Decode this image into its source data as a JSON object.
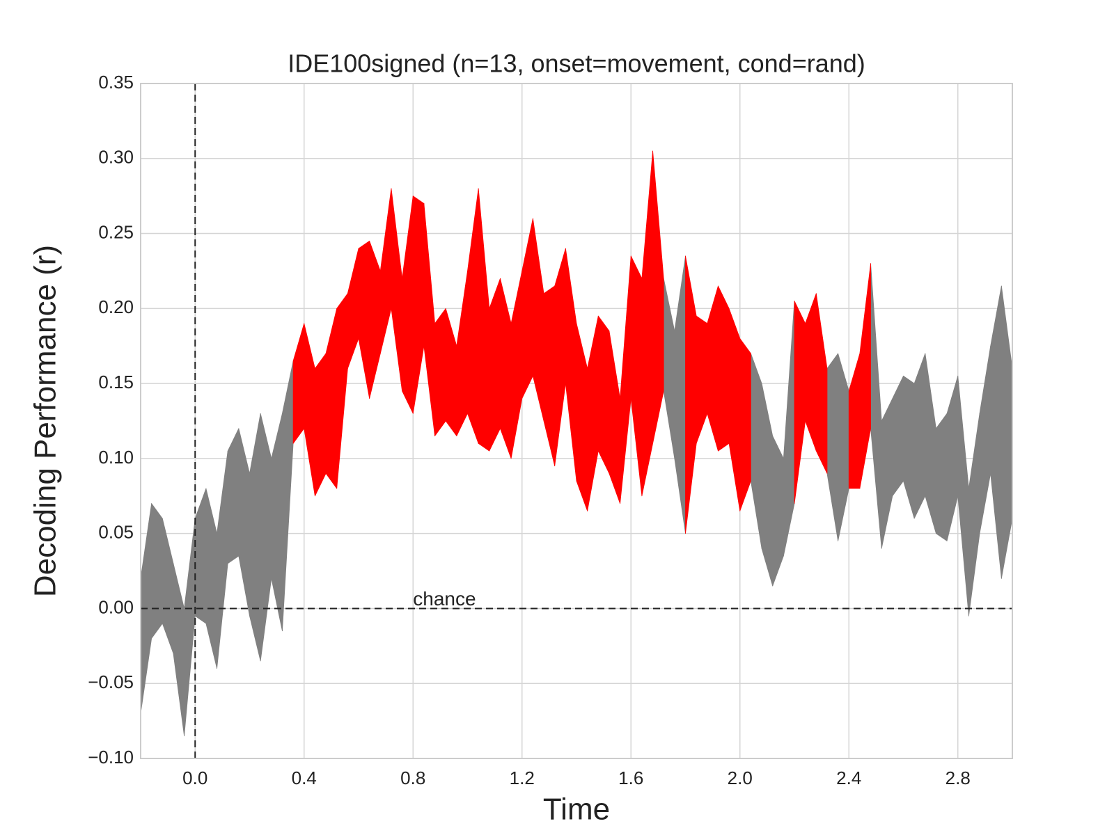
{
  "chart_data": {
    "type": "band",
    "title": "IDE100signed (n=13, onset=movement, cond=rand)",
    "xlabel": "Time",
    "ylabel": "Decoding Performance (r)",
    "x": [
      -0.2,
      -0.16,
      -0.12,
      -0.08,
      -0.04,
      0.0,
      0.04,
      0.08,
      0.12,
      0.16,
      0.2,
      0.24,
      0.28,
      0.32,
      0.36,
      0.4,
      0.44,
      0.48,
      0.52,
      0.56,
      0.6,
      0.64,
      0.68,
      0.72,
      0.76,
      0.8,
      0.84,
      0.88,
      0.92,
      0.96,
      1.0,
      1.04,
      1.08,
      1.12,
      1.16,
      1.2,
      1.24,
      1.28,
      1.32,
      1.36,
      1.4,
      1.44,
      1.48,
      1.52,
      1.56,
      1.6,
      1.64,
      1.68,
      1.72,
      1.76,
      1.8,
      1.84,
      1.88,
      1.92,
      1.96,
      2.0,
      2.04,
      2.08,
      2.12,
      2.16,
      2.2,
      2.24,
      2.28,
      2.32,
      2.36,
      2.4,
      2.44,
      2.48,
      2.52,
      2.56,
      2.6,
      2.64,
      2.68,
      2.72,
      2.76,
      2.8,
      2.84,
      2.88,
      2.92,
      2.96,
      3.0
    ],
    "series": [
      {
        "color": "#808080",
        "lower": [
          -0.07,
          -0.02,
          -0.01,
          -0.03,
          -0.085,
          -0.005,
          -0.01,
          -0.04,
          0.03,
          0.035,
          -0.005,
          -0.035,
          0.02,
          -0.015,
          0.11,
          null,
          null,
          null,
          null,
          null,
          null,
          null,
          null,
          null,
          null,
          null,
          null,
          null,
          null,
          null,
          null,
          null,
          null,
          null,
          null,
          null,
          null,
          null,
          null,
          null,
          null,
          null,
          null,
          null,
          null,
          null,
          null,
          null,
          0.145,
          0.1,
          0.05,
          null,
          null,
          null,
          null,
          null,
          0.085,
          0.04,
          0.015,
          0.035,
          0.07,
          null,
          null,
          0.09,
          0.045,
          0.08,
          null,
          0.12,
          0.04,
          0.075,
          0.085,
          0.06,
          0.075,
          0.05,
          0.045,
          0.075,
          -0.005,
          0.05,
          0.09,
          0.02,
          0.06
        ],
        "upper": [
          0.02,
          0.07,
          0.06,
          0.03,
          0.0,
          0.06,
          0.08,
          0.05,
          0.105,
          0.12,
          0.09,
          0.13,
          0.1,
          0.13,
          0.165,
          null,
          null,
          null,
          null,
          null,
          null,
          null,
          null,
          null,
          null,
          null,
          null,
          null,
          null,
          null,
          null,
          null,
          null,
          null,
          null,
          null,
          null,
          null,
          null,
          null,
          null,
          null,
          null,
          null,
          null,
          null,
          null,
          null,
          0.22,
          0.185,
          0.235,
          null,
          null,
          null,
          null,
          null,
          0.17,
          0.15,
          0.115,
          0.1,
          0.205,
          null,
          null,
          0.16,
          0.17,
          0.145,
          null,
          0.23,
          0.125,
          0.14,
          0.155,
          0.15,
          0.17,
          0.12,
          0.13,
          0.155,
          0.08,
          0.13,
          0.175,
          0.215,
          0.16
        ]
      },
      {
        "color": "#ff0000",
        "lower": [
          null,
          null,
          null,
          null,
          null,
          null,
          null,
          null,
          null,
          null,
          null,
          null,
          null,
          null,
          0.11,
          0.12,
          0.075,
          0.09,
          0.08,
          0.16,
          0.18,
          0.14,
          0.17,
          0.2,
          0.145,
          0.13,
          0.175,
          0.115,
          0.125,
          0.115,
          0.13,
          0.11,
          0.105,
          0.12,
          0.1,
          0.14,
          0.155,
          0.125,
          0.095,
          0.15,
          0.085,
          0.065,
          0.105,
          0.09,
          0.07,
          0.14,
          0.075,
          0.11,
          0.145,
          null,
          0.05,
          0.11,
          0.13,
          0.105,
          0.11,
          0.065,
          0.085,
          null,
          null,
          null,
          0.07,
          0.125,
          0.105,
          0.09,
          null,
          0.08,
          0.08,
          0.12,
          null,
          null,
          null,
          null,
          null,
          null,
          null,
          null,
          null,
          null,
          null,
          null,
          null
        ],
        "upper": [
          null,
          null,
          null,
          null,
          null,
          null,
          null,
          null,
          null,
          null,
          null,
          null,
          null,
          null,
          0.165,
          0.19,
          0.16,
          0.17,
          0.2,
          0.21,
          0.24,
          0.245,
          0.225,
          0.28,
          0.22,
          0.275,
          0.27,
          0.19,
          0.2,
          0.175,
          0.225,
          0.28,
          0.2,
          0.22,
          0.19,
          0.225,
          0.26,
          0.21,
          0.215,
          0.24,
          0.19,
          0.16,
          0.195,
          0.185,
          0.14,
          0.235,
          0.22,
          0.305,
          0.22,
          null,
          0.235,
          0.195,
          0.19,
          0.215,
          0.2,
          0.18,
          0.17,
          null,
          null,
          null,
          0.205,
          0.19,
          0.21,
          0.16,
          null,
          0.145,
          0.17,
          0.23,
          null,
          null,
          null,
          null,
          null,
          null,
          null,
          null,
          null,
          null,
          null,
          null,
          null
        ]
      }
    ],
    "xlim": [
      -0.2,
      3.0
    ],
    "xticks": [
      {
        "value": 0,
        "label": "0.0"
      },
      {
        "value": 0.4,
        "label": "0.4"
      },
      {
        "value": 0.8,
        "label": "0.8"
      },
      {
        "value": 1.2,
        "label": "1.2"
      },
      {
        "value": 1.6,
        "label": "1.6"
      },
      {
        "value": 2.0,
        "label": "2.0"
      },
      {
        "value": 2.4,
        "label": "2.4"
      },
      {
        "value": 2.8,
        "label": "2.8"
      }
    ],
    "ylim": [
      -0.1,
      0.35
    ],
    "yticks": [
      {
        "value": -0.1,
        "label": "−0.10"
      },
      {
        "value": -0.05,
        "label": "−0.05"
      },
      {
        "value": 0,
        "label": "0.00"
      },
      {
        "value": 0.05,
        "label": "0.05"
      },
      {
        "value": 0.1,
        "label": "0.10"
      },
      {
        "value": 0.15,
        "label": "0.15"
      },
      {
        "value": 0.2,
        "label": "0.20"
      },
      {
        "value": 0.25,
        "label": "0.25"
      },
      {
        "value": 0.3,
        "label": "0.30"
      },
      {
        "value": 0.35,
        "label": "0.35"
      }
    ],
    "grid": true,
    "vline": 0,
    "hline": 0,
    "annotation": {
      "text": "chance",
      "x": 0.8,
      "y": 0
    }
  }
}
